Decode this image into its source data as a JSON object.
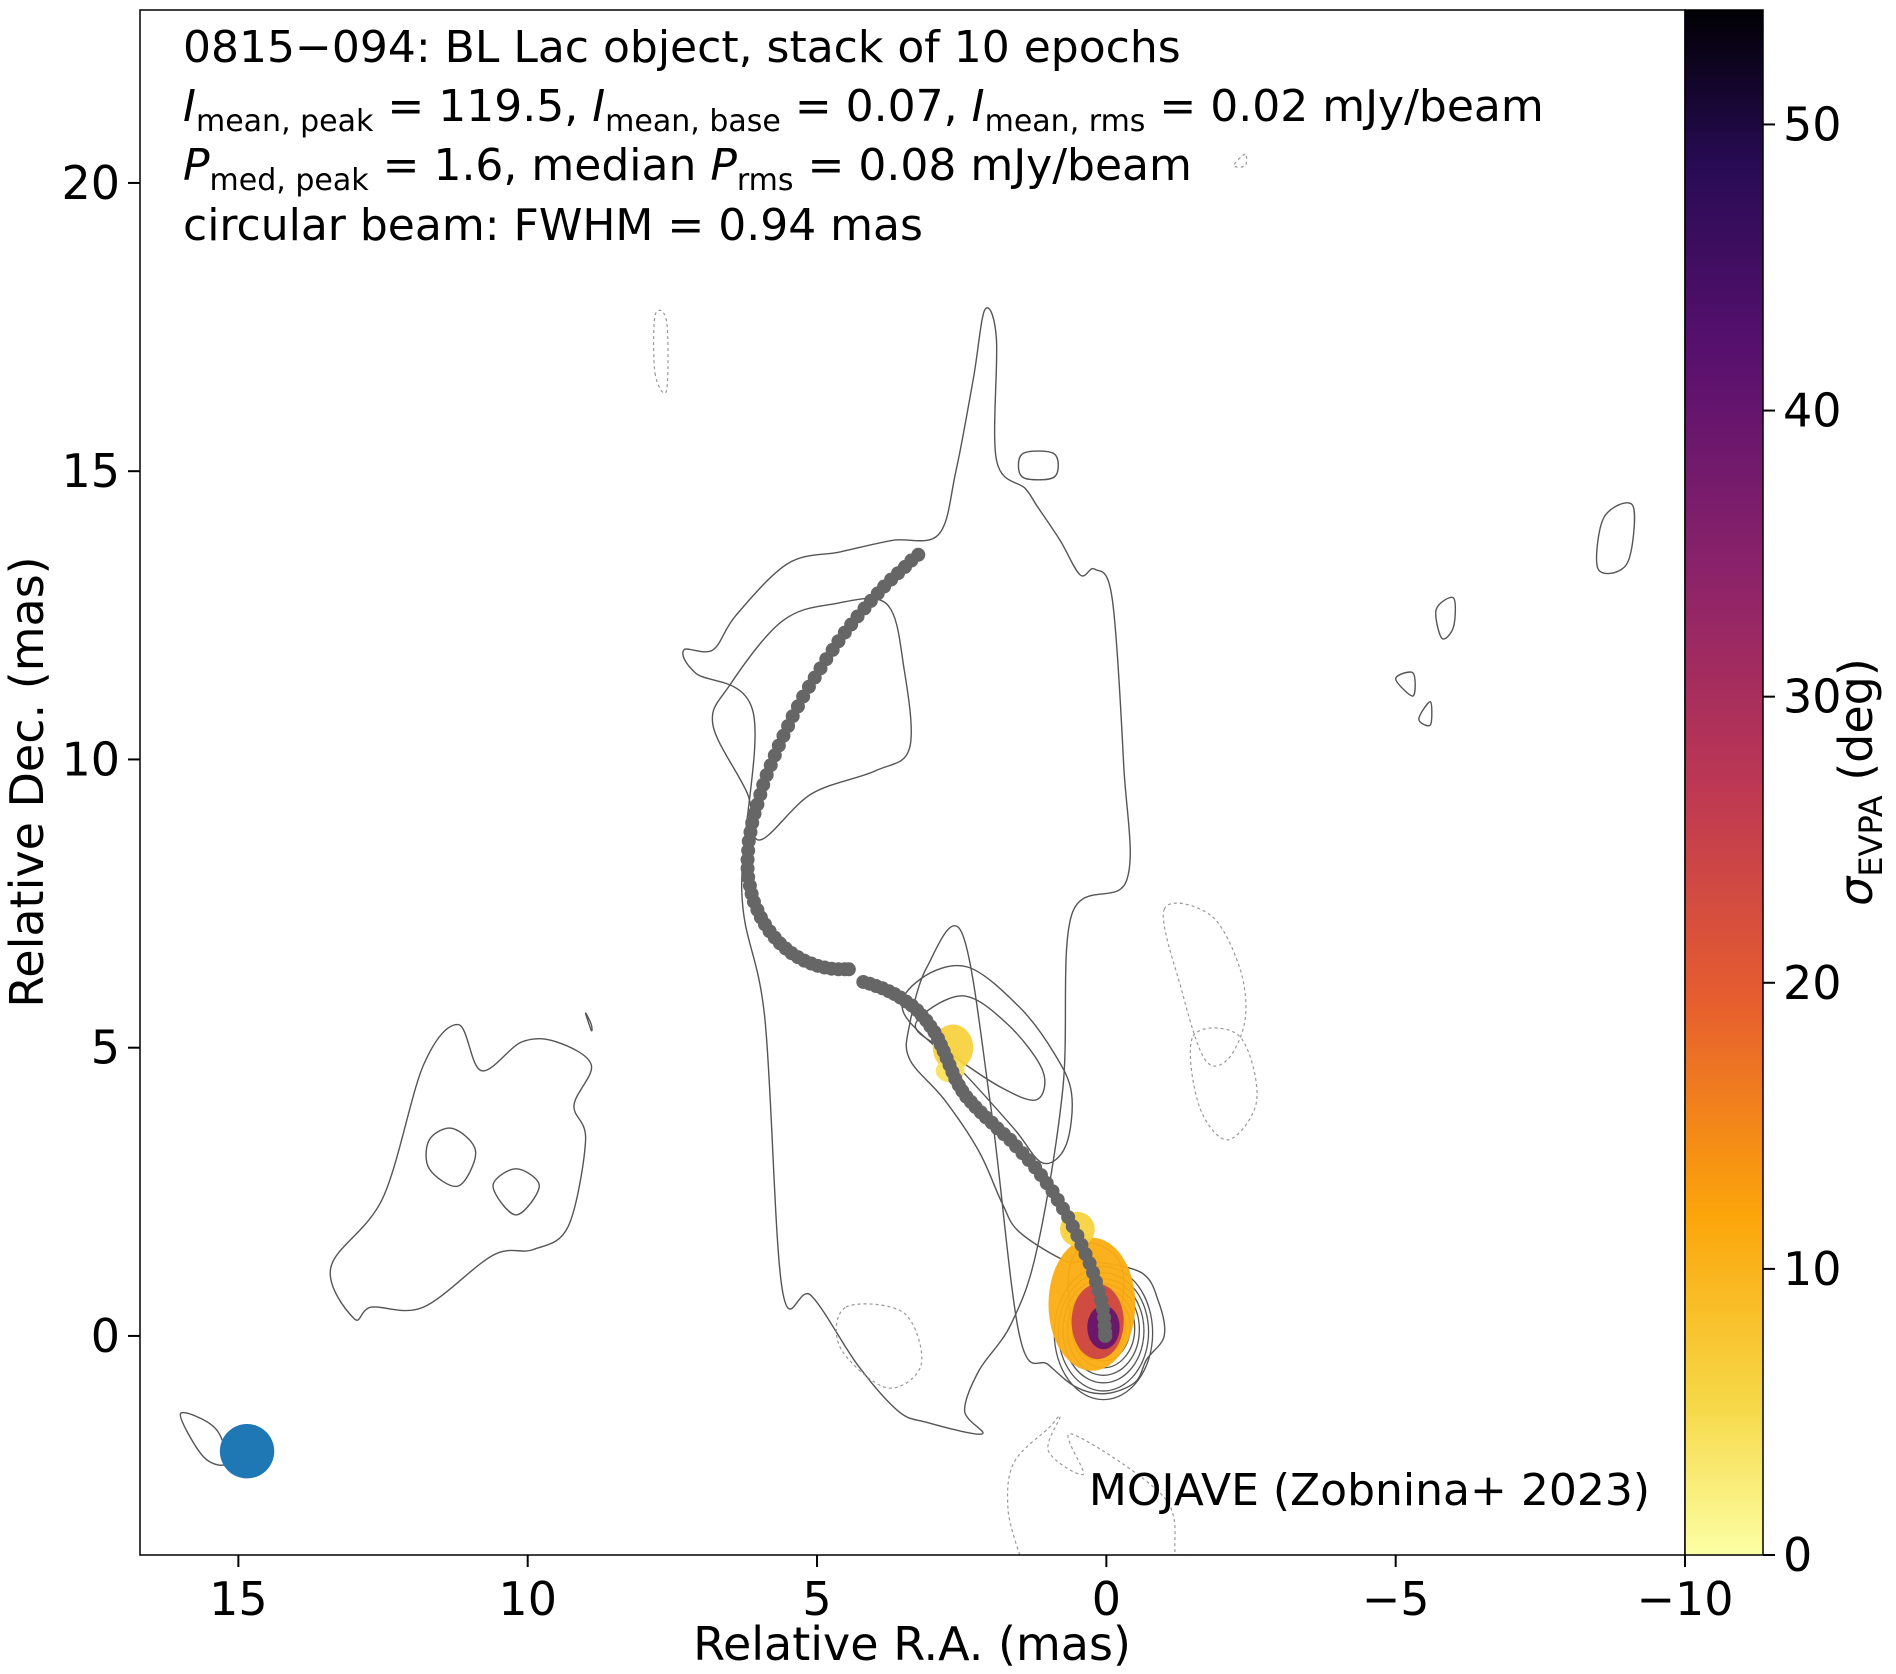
{
  "chart_data": {
    "type": "scatter",
    "annotation_lines": [
      {
        "parts": [
          {
            "text": "0815−094: BL Lac object, stack of 10 epochs",
            "style": "normal"
          }
        ]
      },
      {
        "parts": [
          {
            "text": "I",
            "style": "italic"
          },
          {
            "text": "mean, peak",
            "style": "sub"
          },
          {
            "text": " = 119.5, ",
            "style": "normal"
          },
          {
            "text": "I",
            "style": "italic"
          },
          {
            "text": "mean, base",
            "style": "sub"
          },
          {
            "text": " = 0.07, ",
            "style": "normal"
          },
          {
            "text": "I",
            "style": "italic"
          },
          {
            "text": "mean, rms",
            "style": "sub"
          },
          {
            "text": " = 0.02 mJy/beam",
            "style": "normal"
          }
        ]
      },
      {
        "parts": [
          {
            "text": "P",
            "style": "italic"
          },
          {
            "text": "med, peak",
            "style": "sub"
          },
          {
            "text": " = 1.6, median ",
            "style": "normal"
          },
          {
            "text": "P",
            "style": "italic"
          },
          {
            "text": "rms",
            "style": "sub"
          },
          {
            "text": " = 0.08 mJy/beam",
            "style": "normal"
          }
        ]
      },
      {
        "parts": [
          {
            "text": "circular beam: FWHM = 0.94 mas",
            "style": "normal"
          }
        ]
      }
    ],
    "credit": "MOJAVE (Zobnina+ 2023)",
    "xlabel": "Relative R.A. (mas)",
    "ylabel": "Relative Dec. (mas)",
    "xlim": [
      16.7,
      -10.0
    ],
    "ylim": [
      -3.8,
      23.0
    ],
    "xticks": [
      15,
      10,
      5,
      0,
      -5,
      -10
    ],
    "xtick_labels": [
      "15",
      "10",
      "5",
      "0",
      "−5",
      "−10"
    ],
    "yticks": [
      0,
      5,
      10,
      15,
      20
    ],
    "ytick_labels": [
      "0",
      "5",
      "10",
      "15",
      "20"
    ],
    "grid": false,
    "colorbar": {
      "label_symbol": "σ",
      "label_sub": "EVPA",
      "label_unit": " (deg)",
      "range": [
        0,
        54
      ],
      "ticks": [
        0,
        10,
        20,
        30,
        40,
        50
      ],
      "tick_labels": [
        "0",
        "10",
        "20",
        "30",
        "40",
        "50"
      ],
      "colormap": "inferno_r"
    },
    "colors": {
      "ridge_points": "#666666",
      "beam": "#1f77b4",
      "contour_positive": "#555555",
      "contour_negative": "#999999"
    },
    "beam": {
      "x": 14.85,
      "y": -2.0,
      "fwhm": 0.94
    },
    "ridge_line": {
      "name": "",
      "x": [
        3.25,
        3.37,
        3.48,
        3.6,
        3.72,
        3.84,
        3.95,
        4.07,
        4.18,
        4.3,
        4.41,
        4.52,
        4.63,
        4.73,
        4.84,
        4.94,
        5.04,
        5.14,
        5.24,
        5.33,
        5.42,
        5.5,
        5.58,
        5.66,
        5.73,
        5.8,
        5.87,
        5.93,
        5.98,
        6.03,
        6.08,
        6.12,
        6.15,
        6.18,
        6.19,
        6.2,
        6.2,
        6.19,
        6.16,
        6.13,
        6.09,
        6.03,
        5.97,
        5.9,
        5.82,
        5.73,
        5.64,
        5.54,
        5.44,
        5.33,
        5.22,
        5.1,
        4.99,
        4.87,
        4.75,
        4.63,
        4.52,
        4.45,
        4.2,
        4.09,
        3.98,
        3.87,
        3.76,
        3.66,
        3.56,
        3.46,
        3.36,
        3.27,
        3.19,
        3.11,
        3.04,
        2.97,
        2.91,
        2.86,
        2.81,
        2.76,
        2.71,
        2.66,
        2.61,
        2.55,
        2.49,
        2.42,
        2.34,
        2.26,
        2.17,
        2.08,
        1.98,
        1.88,
        1.77,
        1.66,
        1.56,
        1.45,
        1.34,
        1.23,
        1.13,
        1.03,
        0.93,
        0.84,
        0.75,
        0.66,
        0.58,
        0.5,
        0.43,
        0.36,
        0.29,
        0.23,
        0.18,
        0.13,
        0.09,
        0.06,
        0.04,
        0.03,
        0.02,
        0.02
      ],
      "y": [
        13.55,
        13.45,
        13.34,
        13.23,
        13.12,
        13.0,
        12.88,
        12.75,
        12.62,
        12.48,
        12.34,
        12.2,
        12.05,
        11.9,
        11.74,
        11.58,
        11.42,
        11.26,
        11.09,
        10.92,
        10.75,
        10.58,
        10.41,
        10.24,
        10.07,
        9.9,
        9.73,
        9.56,
        9.39,
        9.22,
        9.06,
        8.9,
        8.74,
        8.58,
        8.42,
        8.26,
        8.11,
        7.96,
        7.81,
        7.67,
        7.53,
        7.39,
        7.26,
        7.14,
        7.02,
        6.91,
        6.81,
        6.72,
        6.64,
        6.57,
        6.51,
        6.46,
        6.42,
        6.39,
        6.37,
        6.36,
        6.36,
        6.36,
        6.14,
        6.11,
        6.07,
        6.03,
        5.98,
        5.93,
        5.87,
        5.8,
        5.73,
        5.65,
        5.56,
        5.47,
        5.37,
        5.27,
        5.16,
        5.05,
        4.94,
        4.82,
        4.7,
        4.58,
        4.46,
        4.35,
        4.25,
        4.15,
        4.06,
        3.97,
        3.88,
        3.79,
        3.7,
        3.6,
        3.5,
        3.4,
        3.29,
        3.17,
        3.05,
        2.92,
        2.79,
        2.65,
        2.51,
        2.36,
        2.21,
        2.06,
        1.9,
        1.74,
        1.58,
        1.42,
        1.26,
        1.1,
        0.94,
        0.78,
        0.62,
        0.47,
        0.32,
        0.18,
        0.06,
        0.0
      ]
    },
    "polarization_patches": [
      {
        "x": 2.65,
        "y": 5.0,
        "rx": 0.35,
        "ry": 0.4,
        "sigma": 6
      },
      {
        "x": 2.7,
        "y": 4.6,
        "rx": 0.25,
        "ry": 0.2,
        "sigma": 4
      },
      {
        "x": 0.25,
        "y": 0.55,
        "rx": 0.75,
        "ry": 1.15,
        "sigma": 11
      },
      {
        "x": 0.5,
        "y": 1.85,
        "rx": 0.3,
        "ry": 0.3,
        "sigma": 6
      },
      {
        "x": 0.15,
        "y": 0.25,
        "rx": 0.45,
        "ry": 0.65,
        "sigma": 24
      },
      {
        "x": 0.05,
        "y": 0.15,
        "rx": 0.28,
        "ry": 0.38,
        "sigma": 40
      }
    ],
    "contours_solid": [
      {
        "x": [
          6.1,
          7.1,
          7.3,
          6.8,
          6.4,
          5.5,
          4.6,
          3.7,
          2.9,
          2.6,
          2.3,
          2.1,
          1.9,
          1.9,
          1.4,
          1.2,
          0.8,
          0.45,
          0.2,
          -0.1,
          -0.3,
          -0.35,
          0.6,
          0.75,
          1.2,
          1.65,
          2.2,
          2.45,
          2.15,
          3.1,
          3.6,
          4.3,
          5.1,
          5.6,
          5.9,
          6.3,
          6.1
        ],
        "y": [
          10.8,
          11.5,
          11.9,
          11.9,
          12.5,
          13.4,
          13.6,
          13.8,
          13.9,
          15.0,
          16.6,
          17.8,
          17.3,
          15.2,
          14.7,
          14.4,
          13.8,
          13.2,
          13.3,
          12.8,
          9.9,
          7.9,
          7.3,
          4.3,
          1.5,
          0.2,
          -0.6,
          -1.3,
          -1.7,
          -1.5,
          -1.3,
          -0.5,
          0.7,
          0.8,
          5.5,
          7.7,
          10.8
        ]
      },
      {
        "x": [
          6.2,
          6.8,
          6.5,
          5.6,
          4.7,
          3.8,
          3.5,
          3.4,
          4.0,
          5.1,
          6.0,
          6.2
        ],
        "y": [
          9.4,
          10.6,
          11.3,
          12.4,
          12.7,
          12.7,
          11.6,
          10.2,
          9.8,
          9.4,
          8.6,
          9.4
        ]
      },
      {
        "x": [
          2.5,
          3.1,
          3.4,
          3.4,
          2.8,
          2.2,
          1.8,
          1.5,
          0.7,
          0.3,
          -0.6,
          -0.9,
          -1.0,
          -0.7,
          -0.5,
          0.0,
          0.5,
          1.0,
          1.5,
          2.0,
          2.5
        ],
        "y": [
          7.0,
          6.4,
          5.4,
          4.8,
          4.1,
          3.2,
          2.3,
          1.8,
          1.3,
          1.3,
          1.1,
          0.6,
          0.0,
          -0.4,
          -0.8,
          -1.0,
          -0.9,
          -0.5,
          0.0,
          4.0,
          7.0
        ]
      },
      {
        "x": [
          3.5,
          3.2,
          2.4,
          1.5,
          0.9,
          0.6,
          0.7,
          1.1,
          1.6,
          2.5,
          3.5
        ],
        "y": [
          5.6,
          6.2,
          6.4,
          5.7,
          4.9,
          4.2,
          3.3,
          3.0,
          3.6,
          4.6,
          5.6
        ]
      },
      {
        "x": [
          3.3,
          2.5,
          1.7,
          1.1,
          1.2,
          1.8,
          2.7,
          3.3
        ],
        "y": [
          5.4,
          5.9,
          5.4,
          4.6,
          4.1,
          4.3,
          4.9,
          5.4
        ]
      },
      {
        "x": [
          0.35,
          0.65,
          0.55,
          0.25,
          -0.15,
          -0.3,
          -0.15,
          0.35
        ],
        "y": [
          1.6,
          1.1,
          0.0,
          -0.4,
          0.0,
          0.9,
          1.4,
          1.6
        ]
      },
      {
        "x": [
          0.2,
          0.4,
          0.3,
          0.0,
          -0.15,
          0.0,
          0.2
        ],
        "y": [
          0.8,
          0.3,
          -0.1,
          0.0,
          0.4,
          0.8,
          0.8
        ]
      },
      {
        "x": [
          12.5,
          13.4,
          13.0,
          12.7,
          11.8,
          10.6,
          9.9,
          9.3,
          9.0,
          9.2,
          8.9,
          9.5,
          10.1,
          10.8,
          11.2,
          11.8,
          12.5
        ],
        "y": [
          2.4,
          1.2,
          0.3,
          0.5,
          0.5,
          1.4,
          1.5,
          1.9,
          3.4,
          4.0,
          4.7,
          5.1,
          5.1,
          4.6,
          5.4,
          4.7,
          2.4
        ]
      },
      {
        "x": [
          11.3,
          10.9,
          11.2,
          11.7,
          11.7,
          11.3
        ],
        "y": [
          3.6,
          3.2,
          2.6,
          2.9,
          3.4,
          3.6
        ]
      },
      {
        "x": [
          10.2,
          9.8,
          10.2,
          10.6,
          10.2
        ],
        "y": [
          2.9,
          2.6,
          2.1,
          2.6,
          2.9
        ]
      },
      {
        "x": [
          16.0,
          15.4,
          15.2,
          15.6,
          16.0
        ],
        "y": [
          -1.35,
          -1.6,
          -2.2,
          -2.1,
          -1.35
        ]
      },
      {
        "x": [
          1.45,
          0.9,
          0.9,
          1.45,
          1.45
        ],
        "y": [
          15.3,
          15.3,
          14.9,
          14.9,
          15.3
        ]
      },
      {
        "x": [
          -9.1,
          -8.6,
          -8.5,
          -9.0,
          -9.1
        ],
        "y": [
          14.4,
          14.2,
          13.3,
          13.4,
          14.4
        ]
      },
      {
        "x": [
          -6.0,
          -5.7,
          -5.8,
          -6.0,
          -6.0
        ],
        "y": [
          12.8,
          12.6,
          12.1,
          12.3,
          12.8
        ]
      },
      {
        "x": [
          -5.3,
          -5.0,
          -5.3,
          -5.3
        ],
        "y": [
          11.5,
          11.4,
          11.1,
          11.5
        ]
      },
      {
        "x": [
          -5.6,
          -5.4,
          -5.6,
          -5.6
        ],
        "y": [
          11.0,
          10.7,
          10.6,
          11.0
        ]
      },
      {
        "x": [
          9.0,
          8.9,
          8.9,
          9.0
        ],
        "y": [
          5.6,
          5.4,
          5.3,
          5.6
        ]
      }
    ],
    "contours_dashed": [
      {
        "x": [
          -1.0,
          -1.8,
          -2.3,
          -2.4,
          -2.1,
          -1.7,
          -1.3,
          -1.0
        ],
        "y": [
          7.4,
          7.3,
          6.4,
          5.5,
          4.8,
          4.8,
          6.0,
          7.4
        ]
      },
      {
        "x": [
          -1.5,
          -2.3,
          -2.6,
          -2.1,
          -1.6,
          -1.5
        ],
        "y": [
          5.2,
          5.2,
          4.1,
          3.4,
          4.0,
          5.2
        ]
      },
      {
        "x": [
          1.5,
          1.7,
          1.6,
          1.0,
          0.8,
          1.0,
          0.4,
          0.6,
          -1.0,
          -1.2,
          -1.4,
          -1.1,
          -1.5
        ],
        "y": [
          -3.8,
          -3.0,
          -2.2,
          -1.6,
          -1.4,
          -2.0,
          -2.4,
          -1.7,
          -2.8,
          -3.8,
          -3.8,
          -3.8,
          -3.8
        ]
      },
      {
        "x": [
          4.5,
          3.5,
          3.2,
          3.8,
          4.6,
          4.5
        ],
        "y": [
          0.5,
          0.4,
          -0.5,
          -0.9,
          -0.2,
          0.5
        ]
      },
      {
        "x": [
          7.8,
          7.6,
          7.6,
          7.8,
          7.8
        ],
        "y": [
          16.7,
          16.4,
          17.6,
          17.7,
          16.7
        ]
      },
      {
        "x": [
          -2.4,
          -2.2,
          -2.4,
          -2.4
        ],
        "y": [
          20.5,
          20.3,
          20.3,
          20.5
        ]
      }
    ]
  }
}
